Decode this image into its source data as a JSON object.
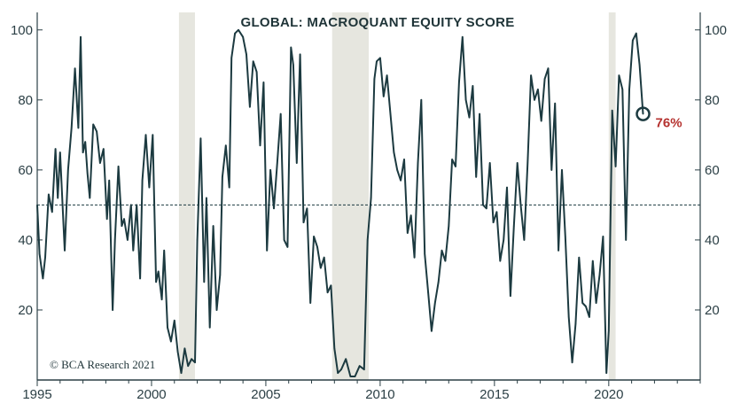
{
  "chart_data": {
    "type": "line",
    "title": "GLOBAL: MACROQUANT EQUITY SCORE",
    "xlabel": "",
    "ylabel": "",
    "xlim": [
      1995,
      2024
    ],
    "ylim": [
      0,
      105
    ],
    "x_ticks": [
      1995,
      2000,
      2005,
      2010,
      2015,
      2020
    ],
    "y_ticks": [
      20,
      40,
      60,
      80,
      100
    ],
    "reference_line": 50,
    "recessions": [
      [
        2001.2,
        2001.9
      ],
      [
        2007.9,
        2009.5
      ],
      [
        2020.0,
        2020.3
      ]
    ],
    "series": [
      {
        "name": "Macroquant Equity Score",
        "x": [
          1995.0,
          1995.1,
          1995.25,
          1995.35,
          1995.5,
          1995.65,
          1995.8,
          1995.9,
          1996.0,
          1996.2,
          1996.35,
          1996.5,
          1996.65,
          1996.8,
          1996.9,
          1997.0,
          1997.1,
          1997.2,
          1997.3,
          1997.45,
          1997.6,
          1997.75,
          1997.9,
          1998.05,
          1998.15,
          1998.3,
          1998.4,
          1998.55,
          1998.7,
          1998.8,
          1998.95,
          1999.1,
          1999.2,
          1999.35,
          1999.5,
          1999.6,
          1999.75,
          1999.9,
          2000.05,
          2000.2,
          2000.3,
          2000.45,
          2000.55,
          2000.7,
          2000.85,
          2001.0,
          2001.15,
          2001.3,
          2001.45,
          2001.6,
          2001.75,
          2001.9,
          2002.0,
          2002.15,
          2002.3,
          2002.4,
          2002.55,
          2002.7,
          2002.85,
          2003.0,
          2003.1,
          2003.25,
          2003.4,
          2003.5,
          2003.65,
          2003.8,
          2004.0,
          2004.15,
          2004.3,
          2004.45,
          2004.6,
          2004.75,
          2004.9,
          2005.05,
          2005.2,
          2005.35,
          2005.5,
          2005.65,
          2005.8,
          2005.95,
          2006.1,
          2006.2,
          2006.35,
          2006.5,
          2006.65,
          2006.8,
          2006.95,
          2007.1,
          2007.25,
          2007.4,
          2007.55,
          2007.7,
          2007.85,
          2008.0,
          2008.15,
          2008.3,
          2008.5,
          2008.7,
          2008.9,
          2009.1,
          2009.3,
          2009.45,
          2009.6,
          2009.75,
          2009.85,
          2010.0,
          2010.15,
          2010.3,
          2010.45,
          2010.6,
          2010.75,
          2010.9,
          2011.05,
          2011.2,
          2011.35,
          2011.5,
          2011.65,
          2011.8,
          2011.95,
          2012.1,
          2012.25,
          2012.4,
          2012.55,
          2012.7,
          2012.85,
          2013.0,
          2013.15,
          2013.3,
          2013.45,
          2013.6,
          2013.75,
          2013.9,
          2014.05,
          2014.2,
          2014.35,
          2014.5,
          2014.65,
          2014.8,
          2014.95,
          2015.1,
          2015.25,
          2015.4,
          2015.55,
          2015.7,
          2015.85,
          2016.0,
          2016.15,
          2016.3,
          2016.45,
          2016.6,
          2016.75,
          2016.9,
          2017.05,
          2017.2,
          2017.35,
          2017.5,
          2017.65,
          2017.8,
          2017.95,
          2018.1,
          2018.25,
          2018.4,
          2018.55,
          2018.7,
          2018.85,
          2019.0,
          2019.15,
          2019.3,
          2019.45,
          2019.6,
          2019.75,
          2019.9,
          2020.0,
          2020.15,
          2020.3,
          2020.45,
          2020.6,
          2020.75,
          2020.9,
          2021.05,
          2021.2,
          2021.35,
          2021.5
        ],
        "values": [
          50,
          36,
          29,
          35,
          53,
          48,
          66,
          52,
          65,
          37,
          60,
          72,
          89,
          72,
          98,
          65,
          68,
          59,
          52,
          73,
          71,
          62,
          66,
          46,
          57,
          20,
          40,
          61,
          44,
          46,
          40,
          50,
          37,
          50,
          29,
          57,
          70,
          55,
          70,
          28,
          31,
          23,
          37,
          15,
          11,
          17,
          8,
          2,
          9,
          4,
          6,
          5,
          40,
          69,
          28,
          52,
          15,
          44,
          20,
          30,
          58,
          67,
          55,
          92,
          99,
          100,
          98,
          93,
          78,
          91,
          88,
          67,
          85,
          37,
          60,
          49,
          62,
          76,
          40,
          38,
          95,
          90,
          62,
          93,
          45,
          49,
          22,
          41,
          38,
          32,
          35,
          25,
          27,
          9,
          2,
          3,
          6,
          1,
          1,
          4,
          3,
          40,
          52,
          86,
          91,
          92,
          81,
          87,
          76,
          65,
          60,
          57,
          63,
          42,
          47,
          35,
          62,
          80,
          36,
          25,
          14,
          22,
          28,
          37,
          34,
          44,
          63,
          61,
          85,
          98,
          80,
          75,
          84,
          58,
          76,
          50,
          49,
          62,
          45,
          48,
          34,
          40,
          55,
          24,
          44,
          62,
          50,
          40,
          62,
          87,
          80,
          83,
          74,
          86,
          89,
          60,
          79,
          37,
          60,
          41,
          18,
          5,
          16,
          35,
          22,
          21,
          18,
          34,
          22,
          30,
          41,
          2,
          14,
          77,
          61,
          87,
          83,
          40,
          83,
          97,
          99,
          90,
          76
        ]
      }
    ],
    "annotations": [
      {
        "label": "76%",
        "year": 2021.5,
        "value": 76
      }
    ],
    "source": "© BCA Research 2021"
  }
}
